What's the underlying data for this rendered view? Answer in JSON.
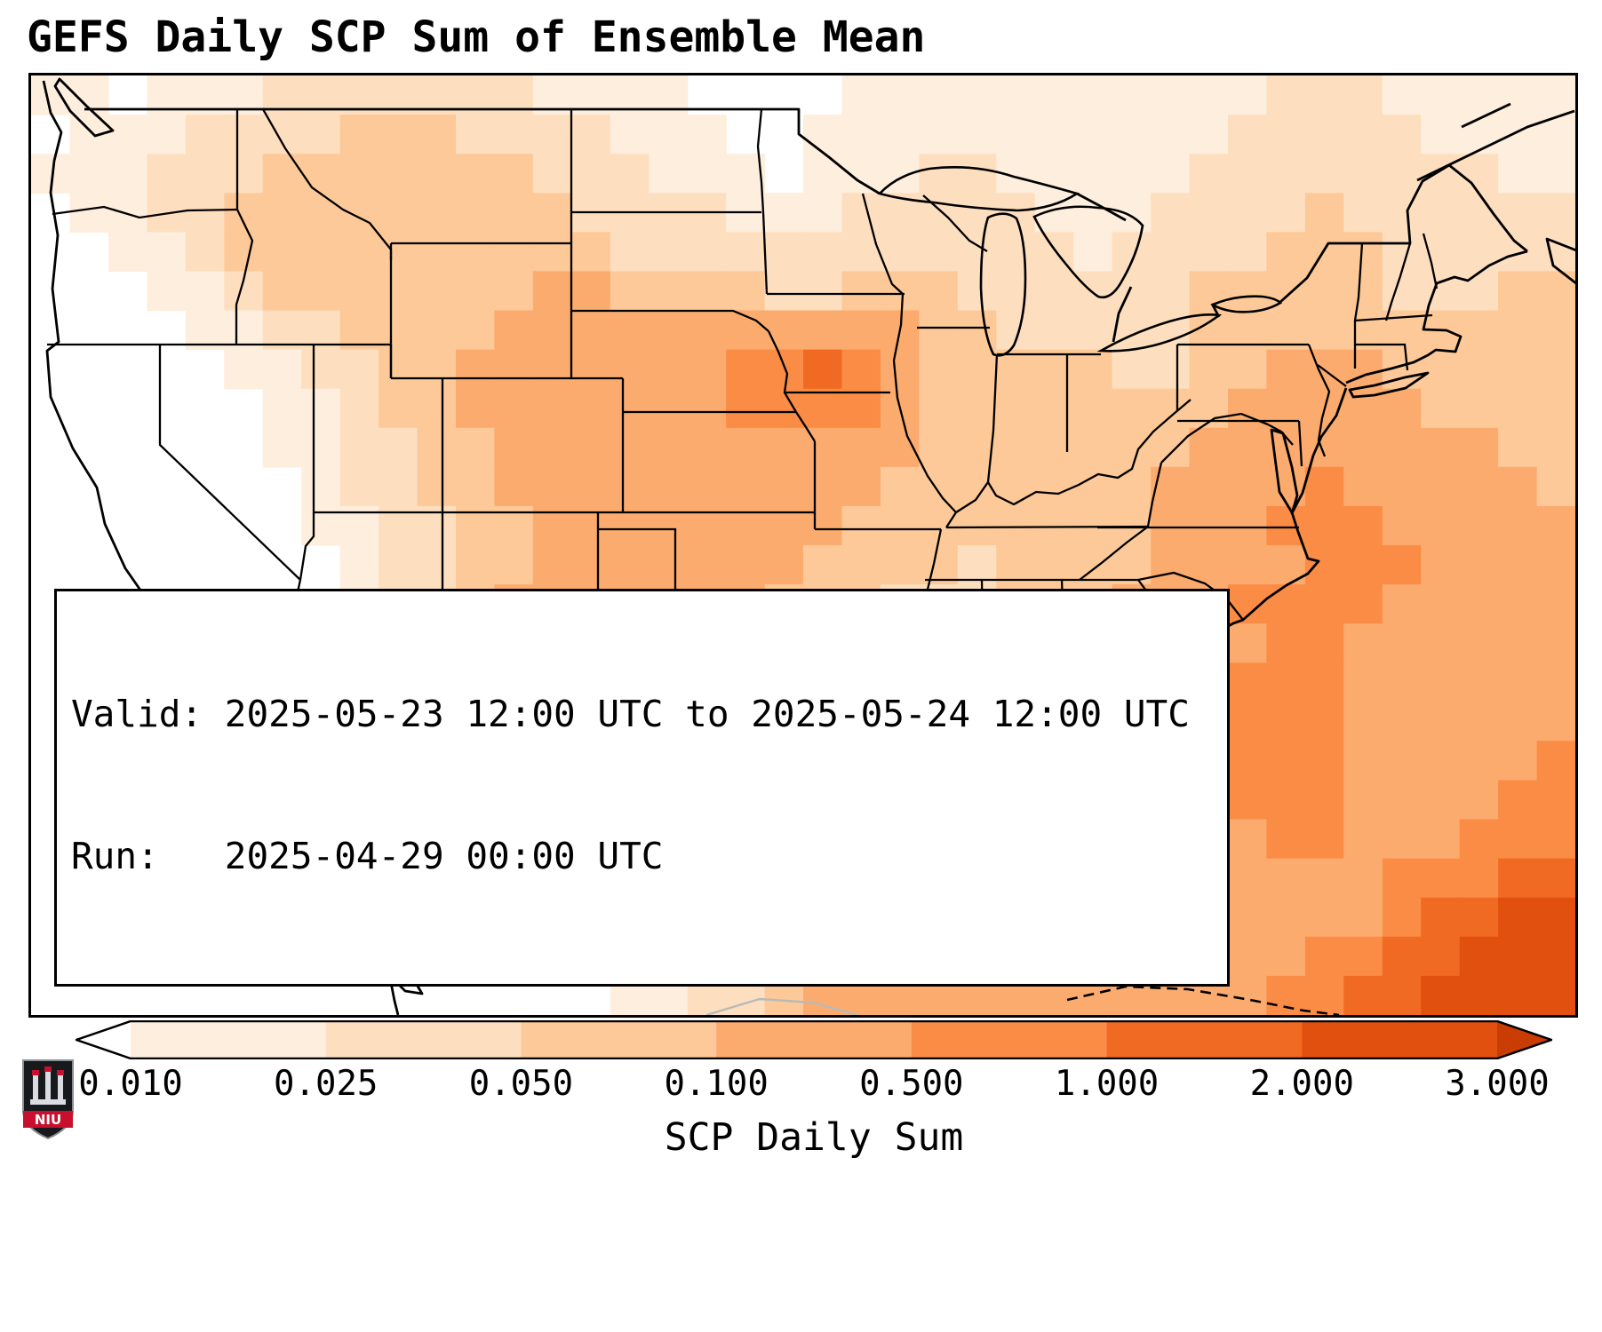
{
  "title": "GEFS Daily SCP Sum of Ensemble Mean",
  "info_box": {
    "valid_line": "Valid: 2025-05-23 12:00 UTC to 2025-05-24 12:00 UTC",
    "run_line": "Run:   2025-04-29 00:00 UTC"
  },
  "colorbar": {
    "label": "SCP Daily Sum",
    "ticks": [
      "0.010",
      "0.025",
      "0.050",
      "0.100",
      "0.500",
      "1.000",
      "2.000",
      "3.000"
    ],
    "extend": "both",
    "outline_color": "#000000"
  },
  "logo": {
    "text": "NIU",
    "banner_color": "#c8102e"
  },
  "chart_data": {
    "type": "heatmap",
    "title": "GEFS Daily SCP Sum of Ensemble Mean",
    "variable": "SCP Daily Sum",
    "valid": "2025-05-23 12:00 UTC to 2025-05-24 12:00 UTC",
    "run": "2025-04-29 00:00 UTC",
    "region": "CONUS map with state boundaries",
    "scale_ticks": [
      0.01,
      0.025,
      0.05,
      0.1,
      0.5,
      1.0,
      2.0,
      3.0
    ],
    "scale_type": "discrete-log",
    "palette": [
      "#ffffff",
      "#feeedd",
      "#fddfc0",
      "#fdc998",
      "#fcab6e",
      "#fa8c46",
      "#f16a23",
      "#e1500f",
      "#c93d05"
    ],
    "grid_encoding": "each row string = 40 cells left-to-right; digit 0-8 indexes palette (0 = below 0.010, 8 = above 3.000)",
    "grid_cols": 40,
    "grid_rows": 24,
    "grid": [
      "1101112222222111100001111111111122211111",
      "0111222233322221110011111111111222221111",
      "1112223333333222111011122111112222222211",
      "0112233333333322221112222211122223222222",
      "0011233333333332222222222221222233322222",
      "0001123333333443333223332222223333322233",
      "0000112233334444444444433222223333333333",
      "0000011223344444445565433333223344433333",
      "0000001123344444445555433333333444443333",
      "0000001122334444444444433333334444444433",
      "0000000122334444444444333333344445444443",
      "0000000112233444444443333333344455544444",
      "0000000012233444444433332333344445554444",
      "0000000012234444444333222333444555544444",
      "0000000011234455443332222233344455444444",
      "0000000001234555443332222223345555444444",
      "0000000001123555444333222222345555444444",
      "0000000001123454445443322223345555444445",
      "0000000000112344455544433333344555444455",
      "0000000000011234444544444444444455444555",
      "0000000000001133444444444444444444455566",
      "0000000000000112344444444444444444456677",
      "0000000000000011233444444444444445566777",
      "0000000000000001122344444444444455667777"
    ],
    "hotspots": [
      {
        "area": "Iowa / eastern Nebraska",
        "approx_value": "0.5-1.0"
      },
      {
        "area": "west-central Texas",
        "approx_value": "0.5-1.0"
      },
      {
        "area": "Texas Gulf coast near Houston",
        "approx_value": "0.5-1.0"
      },
      {
        "area": "Atlantic offshore of Southeast coast",
        "approx_value": "0.5-1.0"
      },
      {
        "area": "far southwest Atlantic / Caribbean corner",
        "approx_value": "2.0-3.0+"
      }
    ]
  }
}
